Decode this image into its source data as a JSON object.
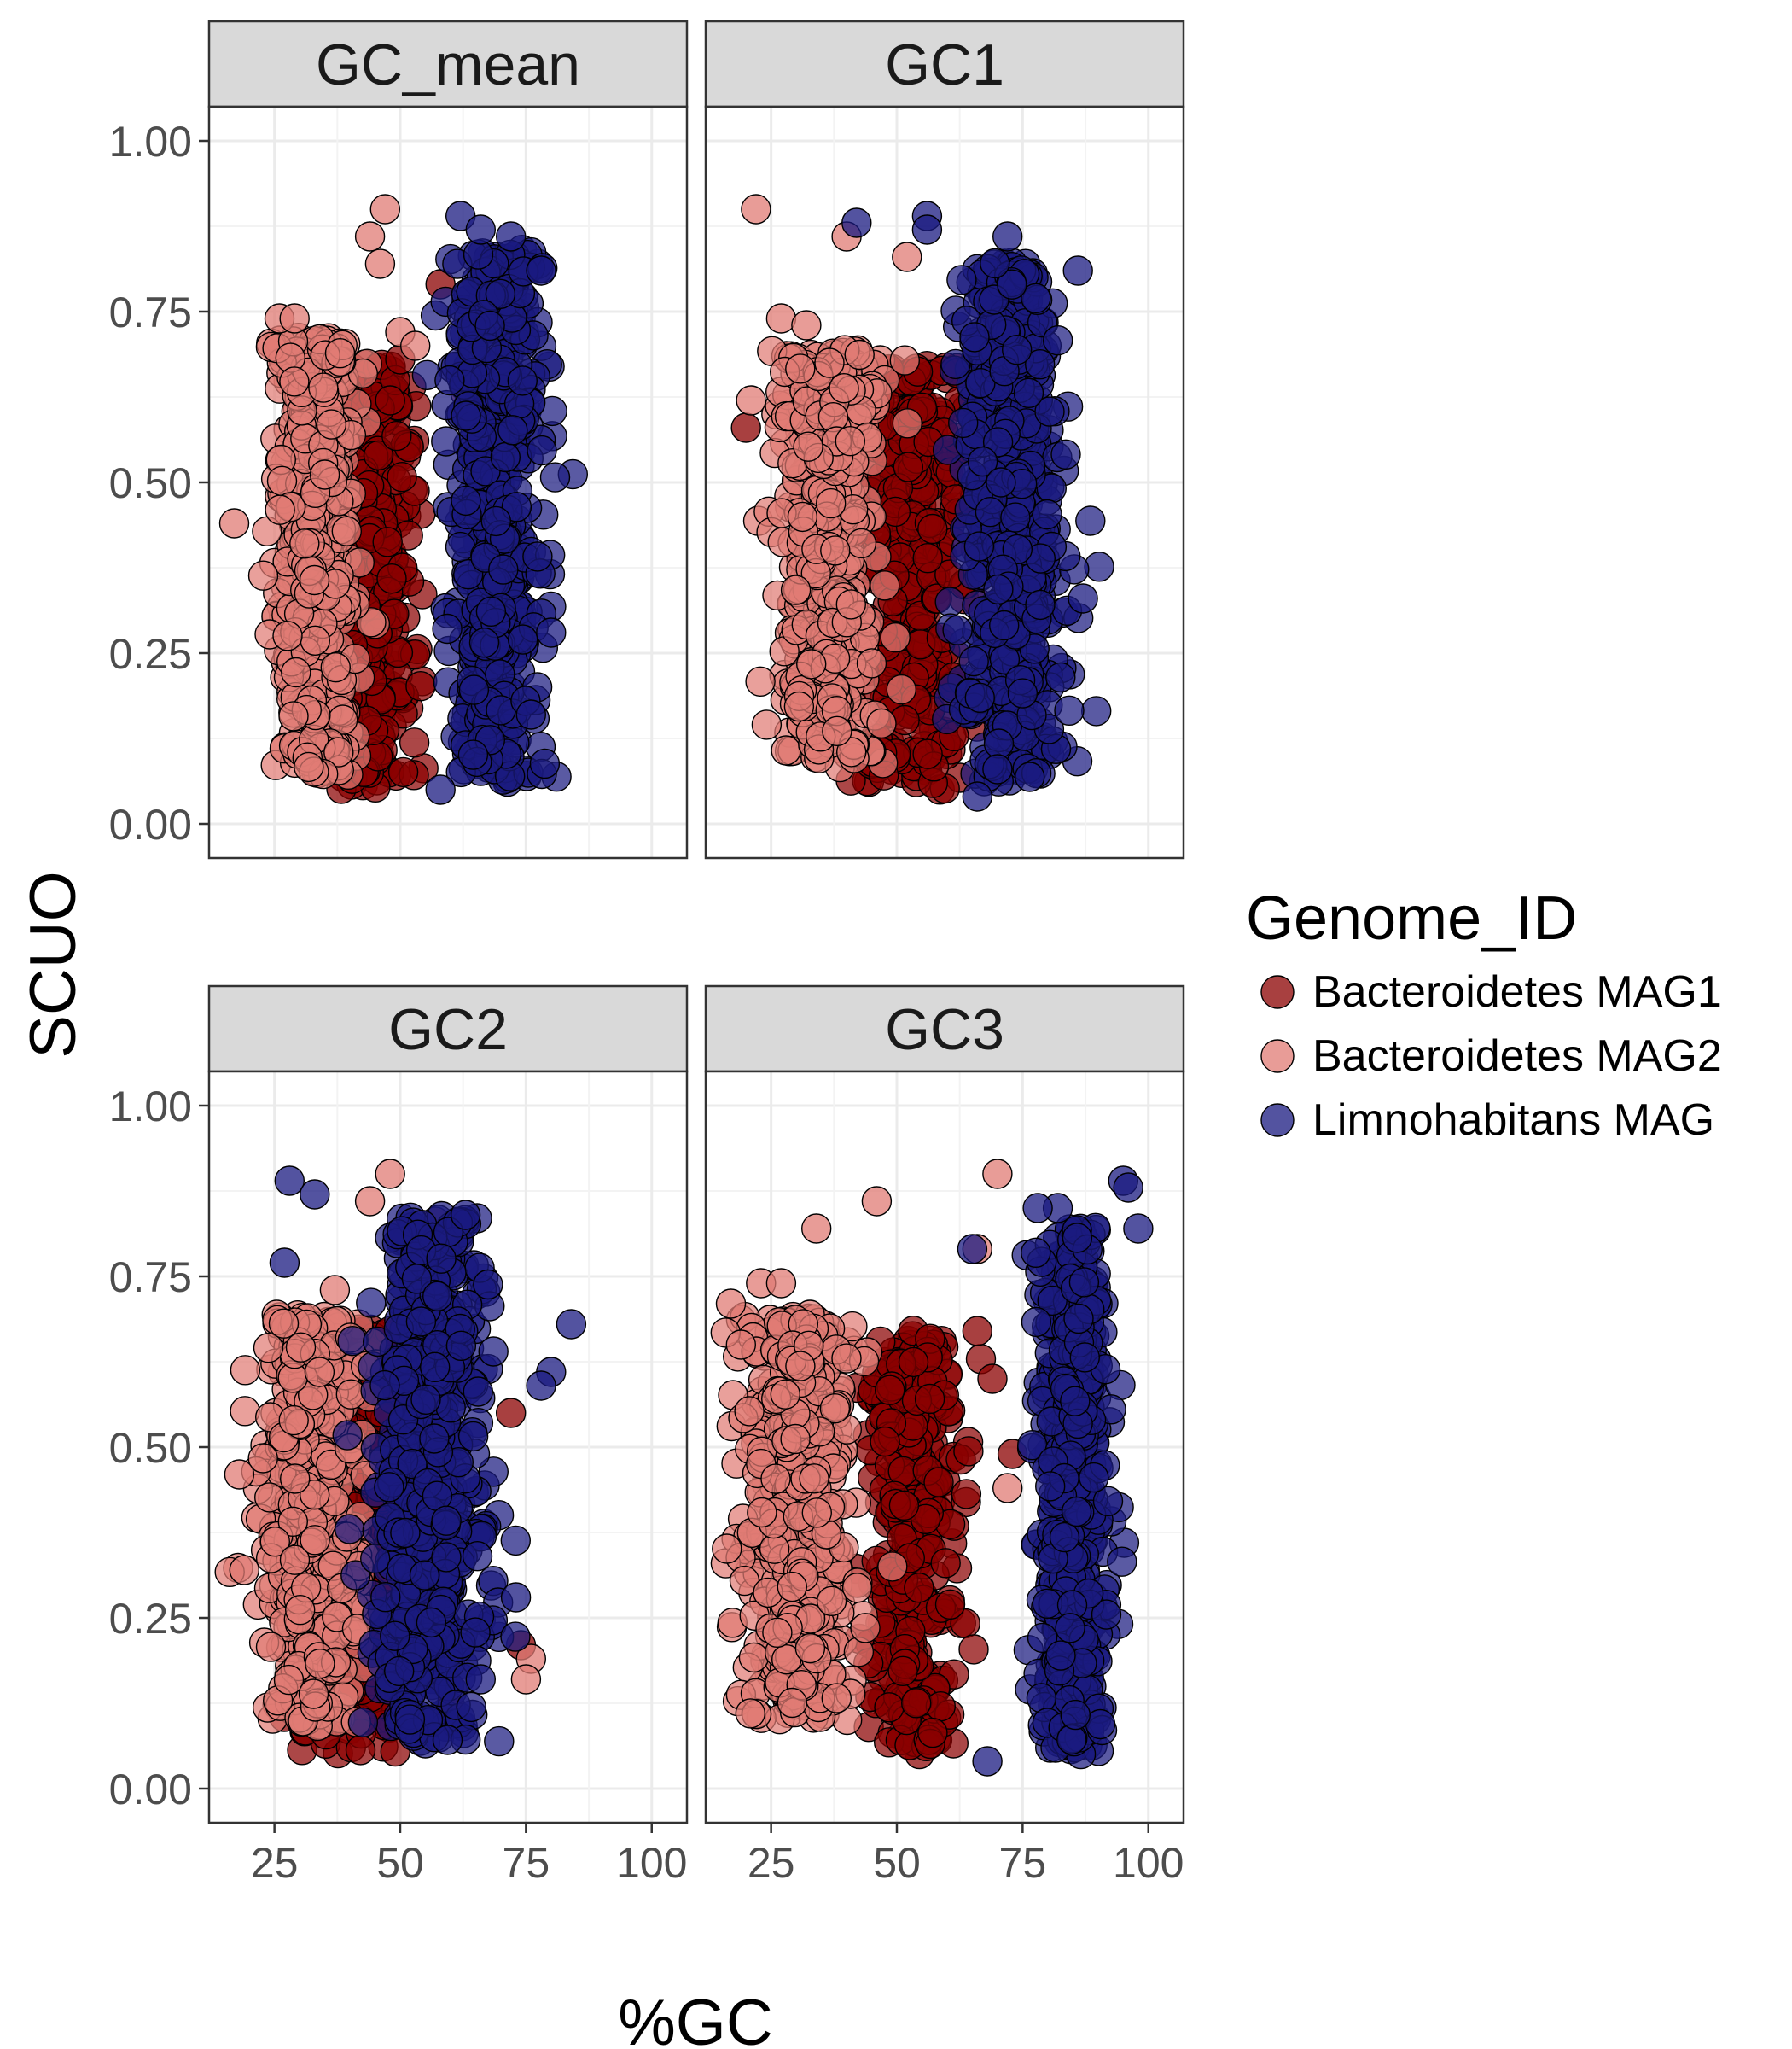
{
  "chart_data": {
    "type": "scatter",
    "xlabel": "%GC",
    "ylabel": "SCUO",
    "xlim": [
      12,
      107
    ],
    "ylim": [
      -0.05,
      1.05
    ],
    "x_ticks": [
      25,
      50,
      75,
      100
    ],
    "y_ticks": [
      0.0,
      0.25,
      0.5,
      0.75,
      1.0
    ],
    "x_tick_labels": [
      "25",
      "50",
      "75",
      "100"
    ],
    "y_tick_labels": [
      "0.00",
      "0.25",
      "0.50",
      "0.75",
      "1.00"
    ],
    "grid": true,
    "legend": {
      "title": "Genome_ID",
      "placement": "right",
      "entries": [
        "Bacteroidetes MAG1",
        "Bacteroidetes MAG2",
        "Limnohabitans MAG"
      ]
    },
    "series_colors": [
      "#8b0000",
      "#e07b74",
      "#1a1a80"
    ],
    "marker": "circle with black outline, semi-transparent",
    "panels": [
      {
        "title": "GC_mean",
        "series": [
          {
            "name": "Bacteroidetes MAG1",
            "x_center": 44,
            "x_spread": 8,
            "y_min": 0.03,
            "y_max": 0.7,
            "extra_points": [
              [
                50,
                0.68
              ],
              [
                58,
                0.79
              ],
              [
                48,
                0.62
              ]
            ]
          },
          {
            "name": "Bacteroidetes MAG2",
            "x_center": 33,
            "x_spread": 7,
            "y_min": 0.05,
            "y_max": 0.74,
            "extra_points": [
              [
                47,
                0.9
              ],
              [
                44,
                0.86
              ],
              [
                46,
                0.82
              ],
              [
                26,
                0.74
              ],
              [
                29,
                0.74
              ],
              [
                50,
                0.72
              ],
              [
                17,
                0.44
              ],
              [
                53,
                0.7
              ],
              [
                63,
                0.63
              ]
            ]
          },
          {
            "name": "Limnohabitans MAG",
            "x_center": 69,
            "x_spread": 8,
            "y_min": 0.04,
            "y_max": 0.88,
            "extra_points": [
              [
                62,
                0.89
              ],
              [
                66,
                0.87
              ],
              [
                72,
                0.86
              ],
              [
                78,
                0.81
              ],
              [
                76,
                0.16
              ],
              [
                58,
                0.05
              ],
              [
                80,
                0.28
              ]
            ]
          }
        ]
      },
      {
        "title": "GC1",
        "series": [
          {
            "name": "Bacteroidetes MAG1",
            "x_center": 53,
            "x_spread": 10,
            "y_min": 0.03,
            "y_max": 0.7,
            "extra_points": [
              [
                20,
                0.58
              ],
              [
                62,
                0.66
              ],
              [
                68,
                0.7
              ]
            ]
          },
          {
            "name": "Bacteroidetes MAG2",
            "x_center": 36,
            "x_spread": 9,
            "y_min": 0.06,
            "y_max": 0.72,
            "extra_points": [
              [
                22,
                0.9
              ],
              [
                40,
                0.86
              ],
              [
                52,
                0.83
              ],
              [
                27,
                0.74
              ],
              [
                32,
                0.73
              ],
              [
                21,
                0.62
              ],
              [
                73,
                0.56
              ],
              [
                76,
                0.44
              ]
            ]
          },
          {
            "name": "Limnohabitans MAG",
            "x_center": 73,
            "x_spread": 9,
            "y_min": 0.04,
            "y_max": 0.86,
            "extra_points": [
              [
                56,
                0.89
              ],
              [
                56,
                0.87
              ],
              [
                42,
                0.88
              ],
              [
                72,
                0.86
              ],
              [
                86,
                0.81
              ],
              [
                66,
                0.04
              ],
              [
                70,
                0.08
              ],
              [
                87,
                0.33
              ]
            ]
          }
        ]
      },
      {
        "title": "GC2",
        "series": [
          {
            "name": "Bacteroidetes MAG1",
            "x_center": 42,
            "x_spread": 10,
            "y_min": 0.03,
            "y_max": 0.7,
            "extra_points": [
              [
                72,
                0.55
              ],
              [
                74,
                0.21
              ],
              [
                60,
                0.12
              ]
            ]
          },
          {
            "name": "Bacteroidetes MAG2",
            "x_center": 33,
            "x_spread": 9,
            "y_min": 0.07,
            "y_max": 0.72,
            "extra_points": [
              [
                48,
                0.9
              ],
              [
                44,
                0.86
              ],
              [
                57,
                0.83
              ],
              [
                37,
                0.73
              ],
              [
                18,
                0.46
              ],
              [
                19,
                0.32
              ],
              [
                76,
                0.19
              ],
              [
                75,
                0.16
              ]
            ]
          },
          {
            "name": "Limnohabitans MAG",
            "x_center": 56,
            "x_spread": 10,
            "y_min": 0.04,
            "y_max": 0.88,
            "extra_points": [
              [
                28,
                0.89
              ],
              [
                33,
                0.87
              ],
              [
                63,
                0.84
              ],
              [
                27,
                0.77
              ],
              [
                84,
                0.68
              ],
              [
                80,
                0.61
              ],
              [
                78,
                0.59
              ],
              [
                73,
                0.28
              ],
              [
                66,
                0.16
              ]
            ]
          }
        ]
      },
      {
        "title": "GC3",
        "series": [
          {
            "name": "Bacteroidetes MAG1",
            "x_center": 53,
            "x_spread": 8,
            "y_min": 0.03,
            "y_max": 0.7,
            "extra_points": [
              [
                66,
                0.67
              ],
              [
                69,
                0.6
              ],
              [
                73,
                0.49
              ]
            ]
          },
          {
            "name": "Bacteroidetes MAG2",
            "x_center": 30,
            "x_spread": 10,
            "y_min": 0.08,
            "y_max": 0.72,
            "extra_points": [
              [
                70,
                0.9
              ],
              [
                46,
                0.86
              ],
              [
                34,
                0.82
              ],
              [
                66,
                0.79
              ],
              [
                17,
                0.71
              ],
              [
                23,
                0.74
              ],
              [
                27,
                0.74
              ],
              [
                19,
                0.65
              ],
              [
                72,
                0.44
              ]
            ]
          },
          {
            "name": "Limnohabitans MAG",
            "x_center": 85,
            "x_spread": 6,
            "y_min": 0.03,
            "y_max": 0.86,
            "extra_points": [
              [
                95,
                0.89
              ],
              [
                96,
                0.88
              ],
              [
                98,
                0.82
              ],
              [
                82,
                0.85
              ],
              [
                78,
                0.85
              ],
              [
                65,
                0.79
              ],
              [
                68,
                0.04
              ]
            ]
          }
        ]
      }
    ]
  }
}
